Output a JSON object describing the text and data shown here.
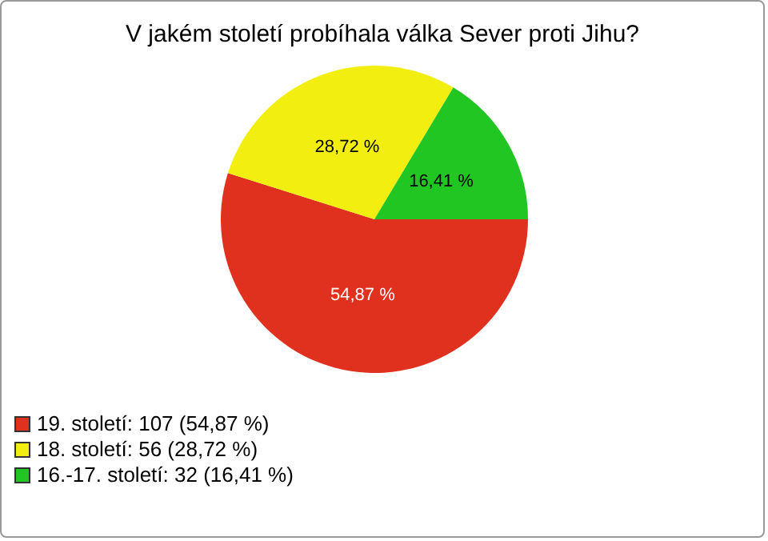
{
  "chart_data": {
    "type": "pie",
    "title": "V jakém století probíhala válka Sever proti Jihu?",
    "categories": [
      "19. století: 107 (54,87 %)",
      "18. století: 56 (28,72 %)",
      "16.-17. století: 32 (16,41 %)"
    ],
    "values": [
      54.87,
      28.72,
      16.41
    ],
    "colors": [
      "#e0301e",
      "#f2ee10",
      "#22c622"
    ],
    "value_labels": [
      "54,87 %",
      "28,72 %",
      "16,41 %"
    ],
    "legend": "bottom left"
  }
}
